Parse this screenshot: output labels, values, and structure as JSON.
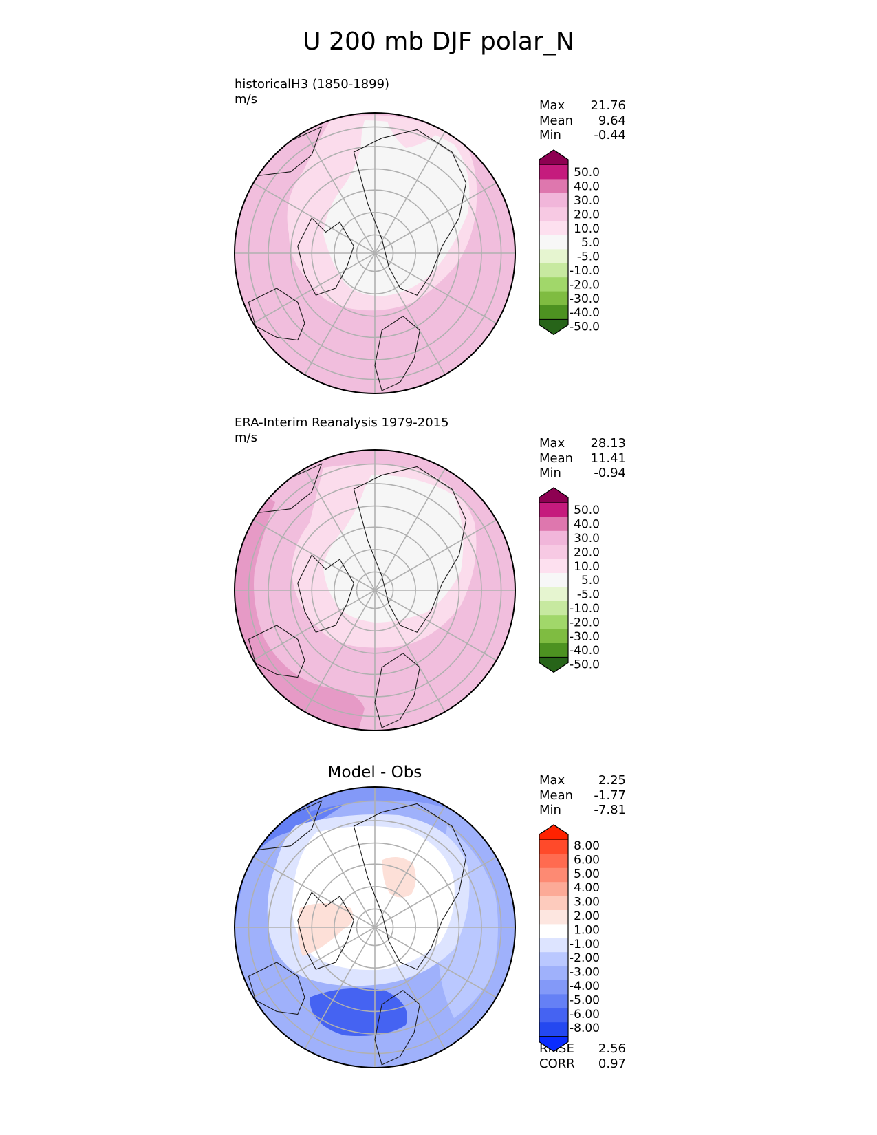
{
  "title": "U 200 mb DJF polar_N",
  "colors": {
    "map_ring_stroke": "#000000",
    "grid": "#b0b0b0",
    "coast": "#1a1a1a"
  },
  "panels": [
    {
      "id": "model",
      "label": "historicalH3 (1850-1899)",
      "units": "m/s",
      "stats": [
        {
          "label": "Max",
          "value": "21.76"
        },
        {
          "label": "Mean",
          "value": "9.64"
        },
        {
          "label": "Min",
          "value": "-0.44"
        }
      ],
      "colorbar": {
        "type": "diverging",
        "extend_top_color": "#8e0152",
        "extend_bottom_color": "#276419",
        "colors": [
          "#c51b7d",
          "#de77ae",
          "#f1b6da",
          "#f7c9e3",
          "#fde0ef",
          "#f7f7f7",
          "#e6f5d0",
          "#c7e9a0",
          "#a1d76a",
          "#7fbc41",
          "#4d9221"
        ],
        "ticks": [
          "50.0",
          "40.0",
          "30.0",
          "20.0",
          "10.0",
          "5.0",
          "-5.0",
          "-10.0",
          "-20.0",
          "-30.0",
          "-40.0",
          "-50.0"
        ]
      }
    },
    {
      "id": "obs",
      "label": "ERA-Interim Reanalysis 1979-2015",
      "units": "m/s",
      "stats": [
        {
          "label": "Max",
          "value": "28.13"
        },
        {
          "label": "Mean",
          "value": "11.41"
        },
        {
          "label": "Min",
          "value": "-0.94"
        }
      ],
      "colorbar": {
        "type": "diverging",
        "extend_top_color": "#8e0152",
        "extend_bottom_color": "#276419",
        "colors": [
          "#c51b7d",
          "#de77ae",
          "#f1b6da",
          "#f7c9e3",
          "#fde0ef",
          "#f7f7f7",
          "#e6f5d0",
          "#c7e9a0",
          "#a1d76a",
          "#7fbc41",
          "#4d9221"
        ],
        "ticks": [
          "50.0",
          "40.0",
          "30.0",
          "20.0",
          "10.0",
          "5.0",
          "-5.0",
          "-10.0",
          "-20.0",
          "-30.0",
          "-40.0",
          "-50.0"
        ]
      }
    },
    {
      "id": "diff",
      "title": "Model - Obs",
      "stats": [
        {
          "label": "Max",
          "value": "2.25"
        },
        {
          "label": "Mean",
          "value": "-1.77"
        },
        {
          "label": "Min",
          "value": "-7.81"
        }
      ],
      "extra_stats": [
        {
          "label": "RMSE",
          "value": "2.56"
        },
        {
          "label": "CORR",
          "value": "0.97"
        }
      ],
      "colorbar": {
        "type": "diverging",
        "extend_top_color": "#ff2200",
        "extend_bottom_color": "#0a2cff",
        "colors": [
          "#ff4a2a",
          "#ff6b50",
          "#fd8a73",
          "#fcaa97",
          "#fdcbbd",
          "#fde6e0",
          "#ffffff",
          "#dde4ff",
          "#bac8ff",
          "#9fb1fb",
          "#8399f8",
          "#6580f5",
          "#4563f2",
          "#2448f0"
        ],
        "ticks": [
          "8.00",
          "6.00",
          "5.00",
          "4.00",
          "3.00",
          "2.00",
          "1.00",
          "-1.00",
          "-2.00",
          "-3.00",
          "-4.00",
          "-5.00",
          "-6.00",
          "-8.00"
        ]
      }
    }
  ],
  "chart_data": [
    {
      "type": "heatmap",
      "projection": "north polar stereographic",
      "title": "historicalH3 (1850-1899)",
      "units": "m/s",
      "levels": [
        -50,
        -40,
        -30,
        -20,
        -10,
        -5,
        5,
        10,
        20,
        30,
        40,
        50
      ],
      "stats": {
        "max": 21.76,
        "mean": 9.64,
        "min": -0.44
      }
    },
    {
      "type": "heatmap",
      "projection": "north polar stereographic",
      "title": "ERA-Interim Reanalysis 1979-2015",
      "units": "m/s",
      "levels": [
        -50,
        -40,
        -30,
        -20,
        -10,
        -5,
        5,
        10,
        20,
        30,
        40,
        50
      ],
      "stats": {
        "max": 28.13,
        "mean": 11.41,
        "min": -0.94
      }
    },
    {
      "type": "heatmap",
      "projection": "north polar stereographic",
      "title": "Model - Obs",
      "levels": [
        -8,
        -6,
        -5,
        -4,
        -3,
        -2,
        -1,
        1,
        2,
        3,
        4,
        5,
        6,
        8
      ],
      "stats": {
        "max": 2.25,
        "mean": -1.77,
        "min": -7.81,
        "rmse": 2.56,
        "corr": 0.97
      }
    }
  ]
}
